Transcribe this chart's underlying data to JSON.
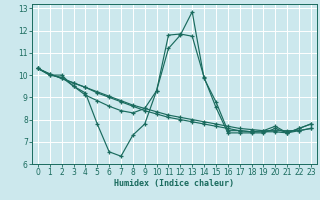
{
  "xlabel": "Humidex (Indice chaleur)",
  "xlim": [
    -0.5,
    23.5
  ],
  "ylim": [
    6,
    13.2
  ],
  "yticks": [
    6,
    7,
    8,
    9,
    10,
    11,
    12,
    13
  ],
  "xticks": [
    0,
    1,
    2,
    3,
    4,
    5,
    6,
    7,
    8,
    9,
    10,
    11,
    12,
    13,
    14,
    15,
    16,
    17,
    18,
    19,
    20,
    21,
    22,
    23
  ],
  "bg_color": "#cce8ed",
  "line_color": "#1a6b5e",
  "grid_color": "#ffffff",
  "lines": [
    {
      "x": [
        0,
        1,
        2,
        3,
        4,
        5,
        6,
        7,
        8,
        9,
        10,
        11,
        12,
        13,
        14,
        15,
        16,
        17,
        18,
        19,
        20,
        21,
        22,
        23
      ],
      "y": [
        10.3,
        10.0,
        10.0,
        9.5,
        9.2,
        7.8,
        6.55,
        6.35,
        7.3,
        7.8,
        9.3,
        11.2,
        11.8,
        12.85,
        9.85,
        8.8,
        7.5,
        7.5,
        7.45,
        7.5,
        7.7,
        7.4,
        7.6,
        7.8
      ]
    },
    {
      "x": [
        0,
        1,
        2,
        3,
        4,
        5,
        6,
        7,
        8,
        9,
        10,
        11,
        12,
        13,
        14,
        15,
        16,
        17,
        18,
        19,
        20,
        21,
        22,
        23
      ],
      "y": [
        10.3,
        10.05,
        9.85,
        9.65,
        9.45,
        9.25,
        9.05,
        8.85,
        8.65,
        8.5,
        8.35,
        8.2,
        8.1,
        8.0,
        7.9,
        7.8,
        7.7,
        7.6,
        7.55,
        7.5,
        7.5,
        7.5,
        7.5,
        7.6
      ]
    },
    {
      "x": [
        0,
        1,
        2,
        3,
        4,
        5,
        6,
        7,
        8,
        9,
        10,
        11,
        12,
        13,
        14,
        15,
        16,
        17,
        18,
        19,
        20,
        21,
        22,
        23
      ],
      "y": [
        10.3,
        10.05,
        9.85,
        9.65,
        9.45,
        9.2,
        9.0,
        8.8,
        8.6,
        8.4,
        8.25,
        8.1,
        8.0,
        7.9,
        7.8,
        7.7,
        7.6,
        7.5,
        7.45,
        7.45,
        7.45,
        7.4,
        7.5,
        7.6
      ]
    },
    {
      "x": [
        0,
        1,
        2,
        3,
        4,
        5,
        6,
        7,
        8,
        9,
        10,
        11,
        12,
        13,
        14,
        15,
        16,
        17,
        18,
        19,
        20,
        21,
        22,
        23
      ],
      "y": [
        10.3,
        10.0,
        9.9,
        9.5,
        9.1,
        8.85,
        8.6,
        8.4,
        8.3,
        8.5,
        9.3,
        11.8,
        11.85,
        11.75,
        9.9,
        8.55,
        7.4,
        7.4,
        7.4,
        7.4,
        7.6,
        7.4,
        7.6,
        7.8
      ]
    }
  ]
}
